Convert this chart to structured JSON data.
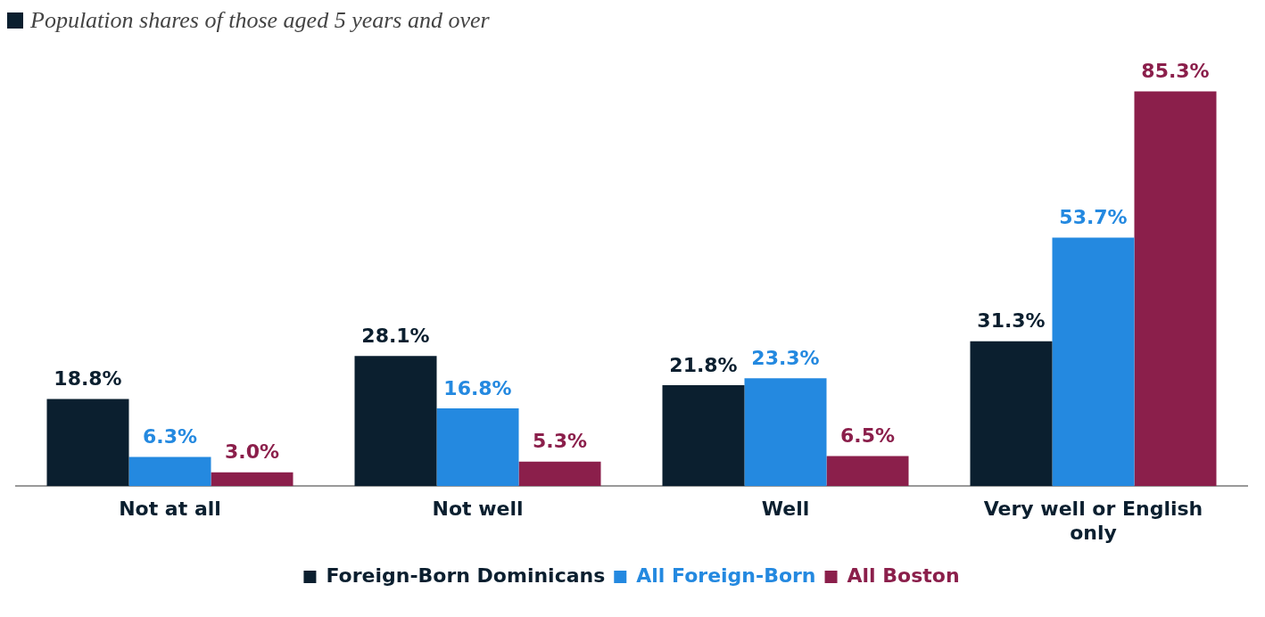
{
  "chart_data": {
    "type": "bar",
    "subtitle": "Population shares of those aged 5 years and over",
    "categories": [
      "Not at all",
      "Not well",
      "Well",
      "Very well or English only"
    ],
    "series": [
      {
        "name": "Foreign-Born Dominicans",
        "color": "#0b1f2f",
        "values": [
          18.8,
          28.1,
          21.8,
          31.3
        ],
        "value_labels": [
          "18.8%",
          "28.1%",
          "21.8%",
          "31.3%"
        ]
      },
      {
        "name": "All Foreign-Born",
        "color": "#2489e0",
        "values": [
          6.3,
          16.8,
          23.3,
          53.7
        ],
        "value_labels": [
          "6.3%",
          "16.8%",
          "23.3%",
          "53.7%"
        ]
      },
      {
        "name": "All Boston",
        "color": "#8b1f4b",
        "values": [
          3.0,
          5.3,
          6.5,
          85.3
        ],
        "value_labels": [
          "3.0%",
          "5.3%",
          "6.5%",
          "85.3%"
        ]
      }
    ],
    "legend": "bottom"
  }
}
